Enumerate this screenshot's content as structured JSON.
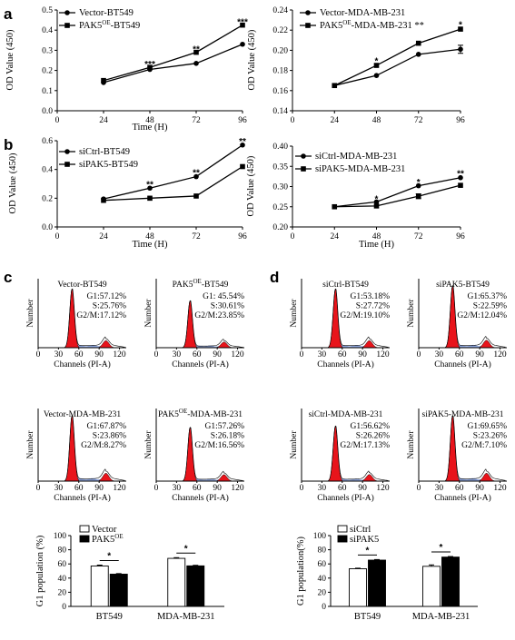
{
  "panel_labels": [
    "a",
    "b",
    "c",
    "d"
  ],
  "chart_data": [
    {
      "type": "line",
      "panel": "a-left",
      "x": [
        24,
        48,
        72,
        96
      ],
      "xlabel": "Time (H)",
      "ylabel": "OD Value (450)",
      "xlim": [
        0,
        96
      ],
      "ylim": [
        0,
        0.5
      ],
      "xticks": [
        "0",
        "24",
        "48",
        "72",
        "96"
      ],
      "yticks": [
        "0.0",
        "0.1",
        "0.2",
        "0.3",
        "0.4",
        "0.5"
      ],
      "series": [
        {
          "name": "Vector-BT549",
          "marker": "circle",
          "values": [
            0.14,
            0.205,
            0.235,
            0.33
          ]
        },
        {
          "name": "PAK5OE-BT549",
          "name_parts": [
            "PAK5",
            "OE",
            "-BT549"
          ],
          "marker": "square",
          "values": [
            0.15,
            0.215,
            0.29,
            0.425
          ]
        }
      ],
      "significance": [
        {
          "x": 48,
          "y": 0.23,
          "text": "***"
        },
        {
          "x": 72,
          "y": 0.305,
          "text": "**"
        },
        {
          "x": 96,
          "y": 0.44,
          "text": "***"
        }
      ]
    },
    {
      "type": "line",
      "panel": "a-right",
      "x": [
        24,
        48,
        72,
        96
      ],
      "xlabel": "",
      "ylabel": "OD Value (450)",
      "xlim": [
        0,
        96
      ],
      "ylim": [
        0.14,
        0.24
      ],
      "xticks": [
        "0",
        "24",
        "48",
        "72",
        "96"
      ],
      "yticks": [
        "0.14",
        "0.16",
        "0.18",
        "0.20",
        "0.22",
        "0.24"
      ],
      "series": [
        {
          "name": "Vector-MDA-MB-231",
          "marker": "circle",
          "values": [
            0.165,
            0.175,
            0.196,
            0.201
          ]
        },
        {
          "name": "PAK5OE-MDA-MB-231",
          "name_parts": [
            "PAK5",
            "OE",
            "-MDA-MB-231"
          ],
          "legend_suffix": " **",
          "marker": "square",
          "values": [
            0.165,
            0.185,
            0.207,
            0.221
          ]
        }
      ],
      "errors": [
        {
          "series": 0,
          "x": 96,
          "err": 0.004
        }
      ],
      "significance": [
        {
          "x": 48,
          "y": 0.189,
          "text": "*"
        },
        {
          "x": 96,
          "y": 0.225,
          "text": "*"
        }
      ]
    },
    {
      "type": "line",
      "panel": "b-left",
      "x": [
        24,
        48,
        72,
        96
      ],
      "xlabel": "Time (H)",
      "ylabel": "OD Value (450)",
      "xlim": [
        0,
        96
      ],
      "ylim": [
        0,
        0.6
      ],
      "xticks": [
        "0",
        "24",
        "48",
        "72",
        "96"
      ],
      "yticks": [
        "0.0",
        "0.2",
        "0.4",
        "0.6"
      ],
      "series": [
        {
          "name": "siCtrl-BT549",
          "marker": "circle",
          "values": [
            0.195,
            0.27,
            0.35,
            0.57
          ]
        },
        {
          "name": "siPAK5-BT549",
          "marker": "square",
          "values": [
            0.185,
            0.2,
            0.215,
            0.42
          ]
        }
      ],
      "significance": [
        {
          "x": 48,
          "y": 0.295,
          "text": "**"
        },
        {
          "x": 72,
          "y": 0.375,
          "text": "**"
        },
        {
          "x": 96,
          "y": 0.595,
          "text": "**"
        }
      ]
    },
    {
      "type": "line",
      "panel": "b-right",
      "x": [
        24,
        48,
        72,
        96
      ],
      "xlabel": "Time (H)",
      "ylabel": "OD Value (450)",
      "xlim": [
        0,
        96
      ],
      "ylim": [
        0.2,
        0.4
      ],
      "xticks": [
        "0",
        "24",
        "48",
        "72",
        "96"
      ],
      "yticks": [
        "0.20",
        "0.25",
        "0.30",
        "0.35",
        "0.40"
      ],
      "series": [
        {
          "name": "siCtrl-MDA-MB-231",
          "marker": "circle",
          "values": [
            0.25,
            0.262,
            0.302,
            0.322
          ]
        },
        {
          "name": "siPAK5-MDA-MB-231",
          "marker": "square",
          "values": [
            0.25,
            0.252,
            0.276,
            0.303
          ]
        }
      ],
      "errors": [
        {
          "series": 1,
          "x": 72,
          "err": 0.006
        }
      ],
      "significance": [
        {
          "x": 48,
          "y": 0.268,
          "text": "*"
        },
        {
          "x": 72,
          "y": 0.31,
          "text": "*"
        },
        {
          "x": 96,
          "y": 0.332,
          "text": "**"
        }
      ]
    },
    {
      "type": "bar",
      "panel": "c-bottom",
      "categories": [
        "BT549",
        "MDA-MB-231"
      ],
      "ylabel": "G1 population (%)",
      "ylim": [
        0,
        100
      ],
      "yticks": [
        "0",
        "20",
        "40",
        "60",
        "80",
        "100"
      ],
      "series": [
        {
          "name": "Vector",
          "name_parts": [
            "Vector"
          ],
          "fill": "#ffffff",
          "values": [
            57.12,
            67.87
          ],
          "errors": [
            1.2,
            1.0
          ]
        },
        {
          "name": "PAK5OE",
          "name_parts": [
            "PAK5",
            "OE",
            ""
          ],
          "fill": "#000000",
          "values": [
            45.54,
            57.26
          ],
          "errors": [
            0.8,
            0.8
          ]
        }
      ],
      "significance": [
        "*",
        "*"
      ]
    },
    {
      "type": "bar",
      "panel": "d-bottom",
      "categories": [
        "BT549",
        "MDA-MB-231"
      ],
      "ylabel": "G1 population(%)",
      "ylim": [
        0,
        100
      ],
      "yticks": [
        "0",
        "20",
        "40",
        "60",
        "80",
        "100"
      ],
      "series": [
        {
          "name": "siCtrl",
          "name_parts": [
            "siCtrl"
          ],
          "fill": "#ffffff",
          "values": [
            53.18,
            56.62
          ],
          "errors": [
            0.8,
            2.0
          ]
        },
        {
          "name": "siPAK5",
          "name_parts": [
            "siPAK5"
          ],
          "fill": "#000000",
          "values": [
            65.37,
            69.65
          ],
          "errors": [
            0.8,
            0.8
          ]
        }
      ],
      "significance": [
        "*",
        "*"
      ]
    }
  ],
  "flow_panels": [
    {
      "title": [
        "Vector-BT549"
      ],
      "stats": [
        "G1:57.12%",
        "S:25.76%",
        "G2/M:17.12%"
      ],
      "g1_peak": 0.9
    },
    {
      "title": [
        "PAK5",
        "OE",
        "-BT549"
      ],
      "stats": [
        "G1: 45.54%",
        "S:30.61%",
        "G2/M:23.85%"
      ],
      "g1_peak": 0.72
    },
    {
      "title": [
        "siCtrl-BT549"
      ],
      "stats": [
        "G1:53.18%",
        "S:27.72%",
        "G2/M:19.10%"
      ],
      "g1_peak": 0.9
    },
    {
      "title": [
        "siPAK5-BT549"
      ],
      "stats": [
        "G1:65.37%",
        "S:22.59%",
        "G2/M:12.04%"
      ],
      "g1_peak": 0.95
    },
    {
      "title": [
        "Vector-MDA-MB-231"
      ],
      "stats": [
        "G1:67.87%",
        "S:23.86%",
        "G2/M:8.27%"
      ],
      "g1_peak": 0.95
    },
    {
      "title": [
        "PAK5",
        "OE",
        "-MDA-MB-231"
      ],
      "stats": [
        "G1:57.26%",
        "S:26.18%",
        "G2/M:16.56%"
      ],
      "g1_peak": 0.78
    },
    {
      "title": [
        "siCtrl-MDA-MB-231"
      ],
      "stats": [
        "G1:56.62%",
        "S:26.26%",
        "G2/M:17.13%"
      ],
      "g1_peak": 0.8
    },
    {
      "title": [
        "siPAK5-MDA-MB-231"
      ],
      "stats": [
        "G1:69.65%",
        "S:23.26%",
        "G2/M:7.10%"
      ],
      "g1_peak": 0.95
    }
  ],
  "flow_axis": {
    "xlabel": "Channels (PI-A)",
    "ylabel": "Number",
    "xticks": [
      "0",
      "30",
      "60",
      "90",
      "120"
    ]
  },
  "colors": {
    "g1_fill": "#e8141b",
    "s_fill": "#8fa6dc",
    "line": "#000000"
  }
}
